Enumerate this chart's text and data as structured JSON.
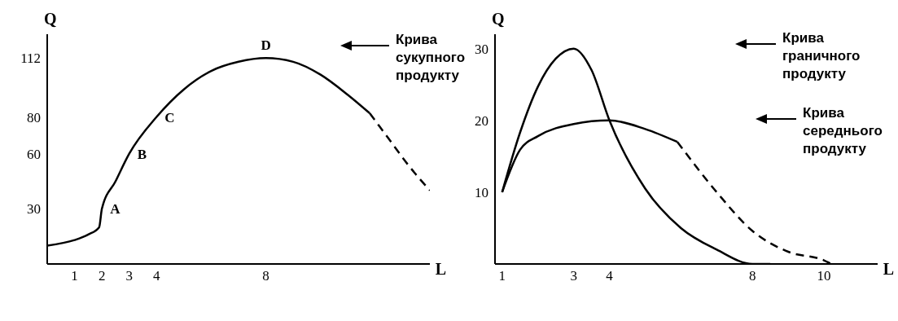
{
  "chart_data": [
    {
      "type": "line",
      "xlabel": "L",
      "ylabel": "Q",
      "xlim": [
        0,
        14
      ],
      "ylim": [
        0,
        125
      ],
      "xticks": [
        1,
        2,
        3,
        4,
        8
      ],
      "yticks": [
        30,
        60,
        80,
        112
      ],
      "grid": false,
      "legend": "top right",
      "marker": "none",
      "series": [
        {
          "name": "Крива сукупного продукту",
          "color": "#000000",
          "line_style": "solid",
          "x": [
            0,
            1,
            1.5,
            1.9,
            2,
            2.5,
            3,
            4,
            5,
            6,
            7,
            8,
            9,
            10,
            11,
            11.8
          ],
          "values": [
            10,
            13,
            16,
            20,
            30,
            45,
            60,
            80,
            95,
            105,
            110,
            112,
            110,
            103,
            92,
            82
          ]
        },
        {
          "color": "#000000",
          "line_style": "dashed",
          "x": [
            11.8,
            12.5,
            13.2,
            14
          ],
          "values": [
            82,
            68,
            54,
            40
          ]
        }
      ],
      "annotations": [
        {
          "text": "A",
          "x": 2,
          "y": 30
        },
        {
          "text": "B",
          "x": 3,
          "y": 60
        },
        {
          "text": "C",
          "x": 4,
          "y": 80
        },
        {
          "text": "D",
          "x": 8,
          "y": 112
        }
      ]
    },
    {
      "type": "line",
      "xlabel": "L",
      "ylabel": "Q",
      "xlim": [
        0.8,
        11.5
      ],
      "ylim": [
        0,
        32
      ],
      "xticks": [
        1,
        3,
        4,
        8,
        10
      ],
      "yticks": [
        10,
        20,
        30
      ],
      "grid": false,
      "legend": "top right",
      "marker": "none",
      "series": [
        {
          "name": "Крива граничного продукту",
          "color": "#000000",
          "line_style": "solid",
          "x": [
            1,
            1.5,
            2,
            2.5,
            3,
            3.5,
            4,
            5,
            6,
            7,
            8,
            8.5
          ],
          "values": [
            10,
            18.3,
            24.7,
            28.6,
            30,
            27,
            20,
            10.5,
            5,
            2,
            0,
            0
          ]
        },
        {
          "name": "Крива середнього продукту",
          "color": "#000000",
          "line_style": "solid",
          "x": [
            1,
            1.5,
            2,
            3,
            4,
            5,
            5.9
          ],
          "values": [
            10,
            15.9,
            17.8,
            19.5,
            20,
            18.8,
            17
          ]
        },
        {
          "color": "#000000",
          "line_style": "dashed",
          "x": [
            5.9,
            7,
            8,
            9,
            10,
            10.2
          ],
          "values": [
            17,
            10,
            4.6,
            1.7,
            0.5,
            0
          ]
        }
      ]
    }
  ]
}
